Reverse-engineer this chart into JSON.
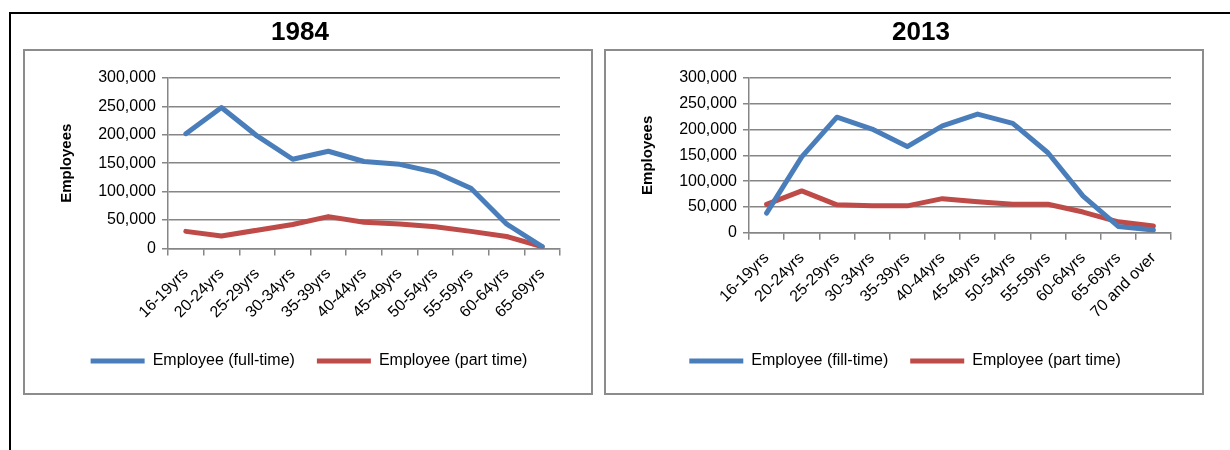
{
  "chart_data": [
    {
      "type": "line",
      "title": "1984",
      "ylabel": "Employees",
      "categories": [
        "16-19yrs",
        "20-24yrs",
        "25-29yrs",
        "30-34yrs",
        "35-39yrs",
        "40-44yrs",
        "45-49yrs",
        "50-54yrs",
        "55-59yrs",
        "60-64yrs",
        "65-69yrs"
      ],
      "series": [
        {
          "name": "Employee (full-time)",
          "color": "#4a7ebb",
          "values": [
            202000,
            248000,
            198000,
            157000,
            171000,
            153000,
            148000,
            134000,
            106000,
            43000,
            3000
          ]
        },
        {
          "name": "Employee (part time)",
          "color": "#be4b48",
          "values": [
            30000,
            22000,
            32000,
            42000,
            56000,
            46000,
            43000,
            38000,
            30000,
            21000,
            3000
          ]
        }
      ],
      "ylim": [
        0,
        300000
      ],
      "yticks": [
        0,
        {
          "value": 50000,
          "label": "50,000"
        },
        {
          "value": 100000,
          "label": "100,000"
        },
        {
          "value": 150000,
          "label": "150,000"
        },
        {
          "value": 200000,
          "label": "200,000"
        },
        {
          "value": 250000,
          "label": "250,000"
        },
        {
          "value": 300000,
          "label": "300,000"
        }
      ],
      "grid": "y",
      "legend": "bottom",
      "marker": "none"
    },
    {
      "type": "line",
      "title": "2013",
      "ylabel": "Employees",
      "categories": [
        "16-19yrs",
        "20-24yrs",
        "25-29yrs",
        "30-34yrs",
        "35-39yrs",
        "40-44yrs",
        "45-49yrs",
        "50-54yrs",
        "55-59yrs",
        "60-64yrs",
        "65-69yrs",
        "70 and over"
      ],
      "series": [
        {
          "name": "Employee (fill-time)",
          "color": "#4a7ebb",
          "values": [
            38000,
            147000,
            224000,
            201000,
            167000,
            207000,
            230000,
            212000,
            155000,
            71000,
            12000,
            5000
          ]
        },
        {
          "name": "Employee (part time)",
          "color": "#be4b48",
          "values": [
            55000,
            81000,
            54000,
            52000,
            52000,
            66000,
            60000,
            55000,
            55000,
            40000,
            21000,
            13000
          ]
        }
      ],
      "ylim": [
        0,
        300000
      ],
      "yticks": [
        0,
        {
          "value": 50000,
          "label": "50,000"
        },
        {
          "value": 100000,
          "label": "100,000"
        },
        {
          "value": 150000,
          "label": "150,000"
        },
        {
          "value": 200000,
          "label": "200,000"
        },
        {
          "value": 250000,
          "label": "250,000"
        },
        {
          "value": 300000,
          "label": "300,000"
        }
      ],
      "grid": "y",
      "legend": "bottom",
      "marker": "none"
    }
  ]
}
